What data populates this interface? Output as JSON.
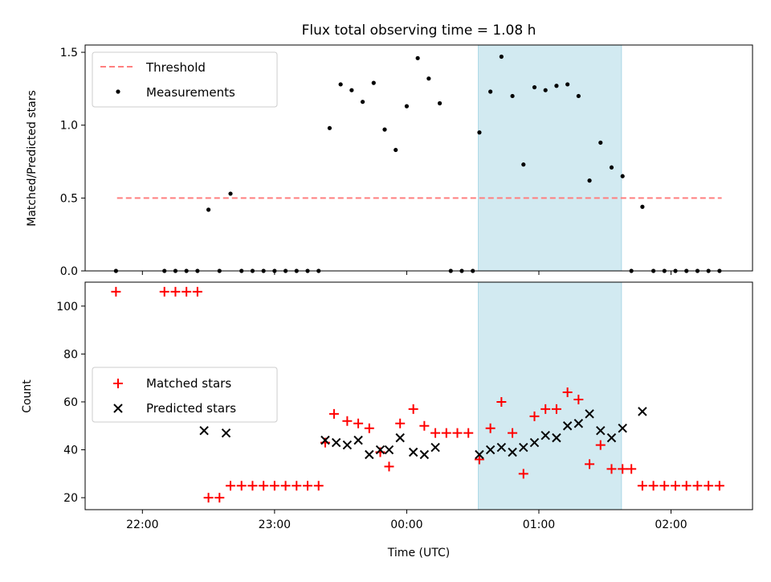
{
  "title": "Flux total observing time = 1.08 h",
  "chart_data": [
    {
      "type": "scatter",
      "panel": "top",
      "ylabel": "Matched/Predicted stars",
      "ylim": [
        0,
        1.55
      ],
      "yticks": [
        0,
        0.5,
        1.0,
        1.5
      ],
      "ytick_labels": [
        "0.0",
        "0.5",
        "1.0",
        "1.5"
      ],
      "x_unit": "minutes relative to 00:00 UTC",
      "threshold": {
        "name": "Threshold",
        "value": 0.5,
        "x_from": -131.5,
        "x_to": 143,
        "color": "#ff7f7f"
      },
      "shaded_span": {
        "from": 32.5,
        "to": 97.5,
        "color": "#add8e6"
      },
      "series": [
        {
          "name": "Measurements",
          "color": "#000000",
          "points": [
            [
              -132,
              0
            ],
            [
              -110,
              0
            ],
            [
              -105,
              0
            ],
            [
              -100,
              0
            ],
            [
              -95,
              0
            ],
            [
              -90,
              0.42
            ],
            [
              -85,
              0
            ],
            [
              -80,
              0.53
            ],
            [
              -75,
              0
            ],
            [
              -70,
              0
            ],
            [
              -65,
              0
            ],
            [
              -60,
              0
            ],
            [
              -55,
              0
            ],
            [
              -50,
              0
            ],
            [
              -45,
              0
            ],
            [
              -40,
              0
            ],
            [
              -35,
              0.98
            ],
            [
              -30,
              1.28
            ],
            [
              -25,
              1.24
            ],
            [
              -20,
              1.16
            ],
            [
              -15,
              1.29
            ],
            [
              -10,
              0.97
            ],
            [
              -5,
              0.83
            ],
            [
              0,
              1.13
            ],
            [
              5,
              1.46
            ],
            [
              10,
              1.32
            ],
            [
              15,
              1.15
            ],
            [
              20,
              0
            ],
            [
              25,
              0
            ],
            [
              30,
              0
            ],
            [
              33,
              0.95
            ],
            [
              38,
              1.23
            ],
            [
              43,
              1.47
            ],
            [
              48,
              1.2
            ],
            [
              53,
              0.73
            ],
            [
              58,
              1.26
            ],
            [
              63,
              1.24
            ],
            [
              68,
              1.27
            ],
            [
              73,
              1.28
            ],
            [
              78,
              1.2
            ],
            [
              83,
              0.62
            ],
            [
              88,
              0.88
            ],
            [
              93,
              0.71
            ],
            [
              98,
              0.65
            ],
            [
              102,
              0
            ],
            [
              107,
              0.44
            ],
            [
              112,
              0
            ],
            [
              117,
              0
            ],
            [
              122,
              0
            ],
            [
              127,
              0
            ],
            [
              132,
              0
            ],
            [
              137,
              0
            ],
            [
              142,
              0
            ]
          ]
        }
      ]
    },
    {
      "type": "scatter",
      "panel": "bottom",
      "xlabel": "Time (UTC)",
      "ylabel": "Count",
      "ylim": [
        15,
        110
      ],
      "yticks": [
        20,
        40,
        60,
        80,
        100
      ],
      "ytick_labels": [
        "20",
        "40",
        "60",
        "80",
        "100"
      ],
      "xlim": [
        -146,
        157
      ],
      "xticks": [
        -120,
        -60,
        0,
        60,
        120
      ],
      "xtick_labels": [
        "22:00",
        "23:00",
        "00:00",
        "01:00",
        "02:00"
      ],
      "shaded_span": {
        "from": 32.5,
        "to": 97.5,
        "color": "#add8e6"
      },
      "series": [
        {
          "name": "Matched stars",
          "marker": "+",
          "color": "#ff0000",
          "points": [
            [
              -132,
              106
            ],
            [
              -110,
              106
            ],
            [
              -105,
              106
            ],
            [
              -100,
              106
            ],
            [
              -95,
              106
            ],
            [
              -90,
              20
            ],
            [
              -85,
              20
            ],
            [
              -80,
              25
            ],
            [
              -75,
              25
            ],
            [
              -70,
              25
            ],
            [
              -65,
              25
            ],
            [
              -60,
              25
            ],
            [
              -55,
              25
            ],
            [
              -50,
              25
            ],
            [
              -45,
              25
            ],
            [
              -40,
              25
            ],
            [
              -37,
              43
            ],
            [
              -33,
              55
            ],
            [
              -27,
              52
            ],
            [
              -22,
              51
            ],
            [
              -17,
              49
            ],
            [
              -12,
              39
            ],
            [
              -8,
              33
            ],
            [
              -3,
              51
            ],
            [
              3,
              57
            ],
            [
              8,
              50
            ],
            [
              13,
              47
            ],
            [
              18,
              47
            ],
            [
              23,
              47
            ],
            [
              28,
              47
            ],
            [
              33,
              36
            ],
            [
              38,
              49
            ],
            [
              43,
              60
            ],
            [
              48,
              47
            ],
            [
              53,
              30
            ],
            [
              58,
              54
            ],
            [
              63,
              57
            ],
            [
              68,
              57
            ],
            [
              73,
              64
            ],
            [
              78,
              61
            ],
            [
              83,
              34
            ],
            [
              88,
              42
            ],
            [
              93,
              32
            ],
            [
              98,
              32
            ],
            [
              102,
              32
            ],
            [
              107,
              25
            ],
            [
              112,
              25
            ],
            [
              117,
              25
            ],
            [
              122,
              25
            ],
            [
              127,
              25
            ],
            [
              132,
              25
            ],
            [
              137,
              25
            ],
            [
              142,
              25
            ]
          ]
        },
        {
          "name": "Predicted stars",
          "marker": "x",
          "color": "#000000",
          "points": [
            [
              -92,
              48
            ],
            [
              -82,
              47
            ],
            [
              -37,
              44
            ],
            [
              -32,
              43
            ],
            [
              -27,
              42
            ],
            [
              -22,
              44
            ],
            [
              -17,
              38
            ],
            [
              -12,
              40
            ],
            [
              -8,
              40
            ],
            [
              -3,
              45
            ],
            [
              3,
              39
            ],
            [
              8,
              38
            ],
            [
              13,
              41
            ],
            [
              33,
              38
            ],
            [
              38,
              40
            ],
            [
              43,
              41
            ],
            [
              48,
              39
            ],
            [
              53,
              41
            ],
            [
              58,
              43
            ],
            [
              63,
              46
            ],
            [
              68,
              45
            ],
            [
              73,
              50
            ],
            [
              78,
              51
            ],
            [
              83,
              55
            ],
            [
              88,
              48
            ],
            [
              93,
              45
            ],
            [
              98,
              49
            ],
            [
              107,
              56
            ]
          ]
        }
      ]
    }
  ]
}
